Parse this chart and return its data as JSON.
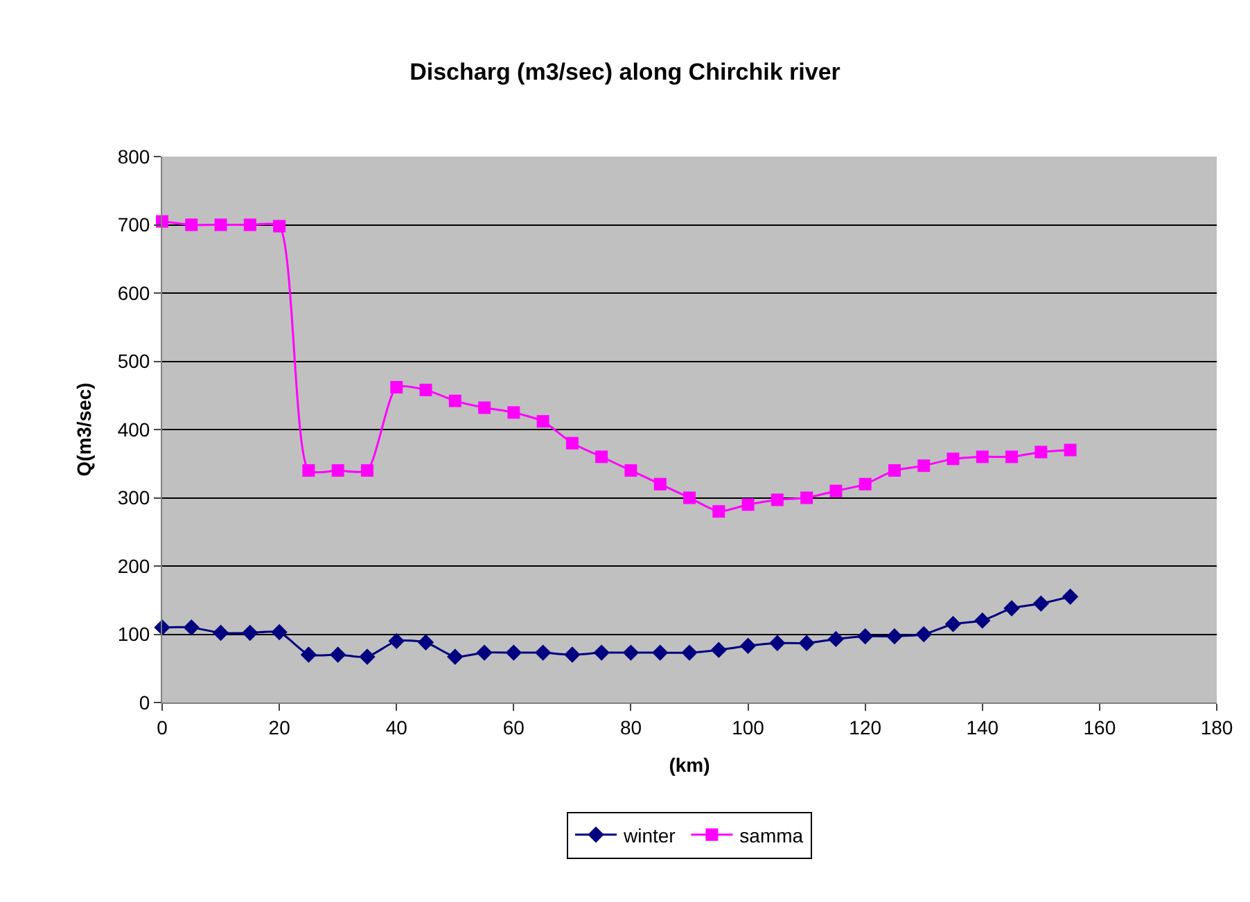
{
  "chart_data": {
    "type": "line",
    "title": "Discharg (m3/sec) along Chirchik river",
    "xlabel": "(km)",
    "ylabel": "Q(m3/sec)",
    "x": [
      0,
      5,
      10,
      15,
      20,
      25,
      30,
      35,
      40,
      45,
      50,
      55,
      60,
      65,
      70,
      75,
      80,
      85,
      90,
      95,
      100,
      105,
      110,
      115,
      120,
      125,
      130,
      135,
      140,
      145,
      150,
      155
    ],
    "series": [
      {
        "name": "winter",
        "color": "#000080",
        "marker": "diamond",
        "values": [
          110,
          110,
          102,
          102,
          103,
          70,
          70,
          67,
          90,
          88,
          67,
          73,
          73,
          73,
          70,
          73,
          73,
          73,
          73,
          77,
          83,
          87,
          87,
          93,
          97,
          97,
          100,
          115,
          120,
          138,
          145,
          155
        ]
      },
      {
        "name": "samma",
        "color": "#ff00ff",
        "marker": "square",
        "values": [
          705,
          700,
          700,
          700,
          698,
          340,
          340,
          340,
          462,
          458,
          442,
          432,
          425,
          412,
          380,
          360,
          340,
          320,
          300,
          280,
          290,
          297,
          300,
          310,
          320,
          340,
          347,
          357,
          360,
          360,
          367,
          370
        ]
      }
    ],
    "xlim": [
      0,
      180
    ],
    "xticks": [
      0,
      20,
      40,
      60,
      80,
      100,
      120,
      140,
      160,
      180
    ],
    "ylim": [
      0,
      800
    ],
    "yticks": [
      0,
      100,
      200,
      300,
      400,
      500,
      600,
      700,
      800
    ],
    "grid": "y",
    "legend": "bottom",
    "line_style": "solid"
  }
}
